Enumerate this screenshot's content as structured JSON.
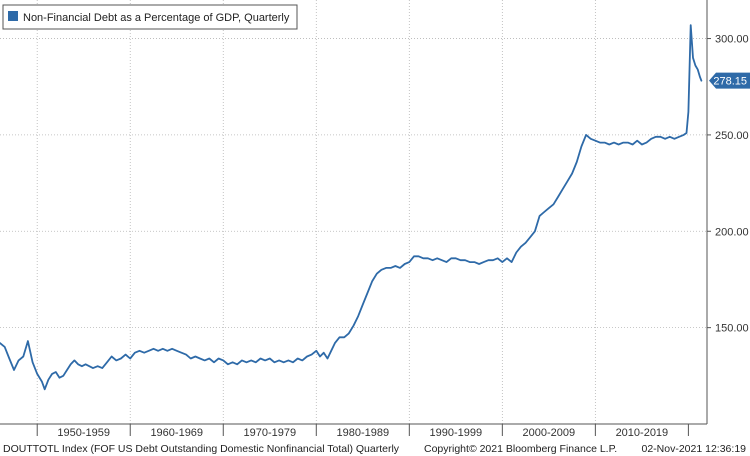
{
  "chart_data": {
    "type": "line",
    "title": "Non-Financial Debt as a Percentage of GDP, Quarterly",
    "x_range": [
      1946,
      2022
    ],
    "ylim": [
      100,
      320
    ],
    "y_ticks": [
      {
        "value": 150,
        "label": "150.00"
      },
      {
        "value": 200,
        "label": "200.00"
      },
      {
        "value": 250,
        "label": "250.00"
      },
      {
        "value": 300,
        "label": "300.00"
      }
    ],
    "x_bands": [
      {
        "label": "1950-1959",
        "start": 1950,
        "end": 1960
      },
      {
        "label": "1960-1969",
        "start": 1960,
        "end": 1970
      },
      {
        "label": "1970-1979",
        "start": 1970,
        "end": 1980
      },
      {
        "label": "1980-1989",
        "start": 1980,
        "end": 1990
      },
      {
        "label": "1990-1999",
        "start": 1990,
        "end": 2000
      },
      {
        "label": "2000-2009",
        "start": 2000,
        "end": 2010
      },
      {
        "label": "2010-2019",
        "start": 2010,
        "end": 2020
      }
    ],
    "last_value_label": "278.15",
    "grid": true,
    "legend_position": "top-left",
    "series": [
      {
        "name": "Non-Financial Debt as a Percentage of GDP, Quarterly",
        "color": "#2e6aa8",
        "points": [
          [
            1946.0,
            142
          ],
          [
            1946.5,
            140
          ],
          [
            1947.0,
            134
          ],
          [
            1947.5,
            128
          ],
          [
            1948.0,
            133
          ],
          [
            1948.5,
            135
          ],
          [
            1949.0,
            143
          ],
          [
            1949.5,
            132
          ],
          [
            1950.0,
            126
          ],
          [
            1950.5,
            122
          ],
          [
            1950.8,
            118
          ],
          [
            1951.2,
            123
          ],
          [
            1951.6,
            126
          ],
          [
            1952.0,
            127
          ],
          [
            1952.4,
            124
          ],
          [
            1952.8,
            125
          ],
          [
            1953.2,
            128
          ],
          [
            1953.6,
            131
          ],
          [
            1954.0,
            133
          ],
          [
            1954.4,
            131
          ],
          [
            1954.8,
            130
          ],
          [
            1955.2,
            131
          ],
          [
            1955.6,
            130
          ],
          [
            1956.0,
            129
          ],
          [
            1956.5,
            130
          ],
          [
            1957.0,
            129
          ],
          [
            1957.5,
            132
          ],
          [
            1958.0,
            135
          ],
          [
            1958.5,
            133
          ],
          [
            1959.0,
            134
          ],
          [
            1959.5,
            136
          ],
          [
            1960.0,
            134
          ],
          [
            1960.5,
            137
          ],
          [
            1961.0,
            138
          ],
          [
            1961.5,
            137
          ],
          [
            1962.0,
            138
          ],
          [
            1962.5,
            139
          ],
          [
            1963.0,
            138
          ],
          [
            1963.5,
            139
          ],
          [
            1964.0,
            138
          ],
          [
            1964.5,
            139
          ],
          [
            1965.0,
            138
          ],
          [
            1965.5,
            137
          ],
          [
            1966.0,
            136
          ],
          [
            1966.5,
            134
          ],
          [
            1967.0,
            135
          ],
          [
            1967.5,
            134
          ],
          [
            1968.0,
            133
          ],
          [
            1968.5,
            134
          ],
          [
            1969.0,
            132
          ],
          [
            1969.5,
            134
          ],
          [
            1970.0,
            133
          ],
          [
            1970.5,
            131
          ],
          [
            1971.0,
            132
          ],
          [
            1971.5,
            131
          ],
          [
            1972.0,
            133
          ],
          [
            1972.5,
            132
          ],
          [
            1973.0,
            133
          ],
          [
            1973.5,
            132
          ],
          [
            1974.0,
            134
          ],
          [
            1974.5,
            133
          ],
          [
            1975.0,
            134
          ],
          [
            1975.5,
            132
          ],
          [
            1976.0,
            133
          ],
          [
            1976.5,
            132
          ],
          [
            1977.0,
            133
          ],
          [
            1977.5,
            132
          ],
          [
            1978.0,
            134
          ],
          [
            1978.5,
            133
          ],
          [
            1979.0,
            135
          ],
          [
            1979.5,
            136
          ],
          [
            1980.0,
            138
          ],
          [
            1980.4,
            135
          ],
          [
            1980.8,
            137
          ],
          [
            1981.2,
            134
          ],
          [
            1981.6,
            138
          ],
          [
            1982.0,
            142
          ],
          [
            1982.5,
            145
          ],
          [
            1983.0,
            145
          ],
          [
            1983.5,
            147
          ],
          [
            1984.0,
            151
          ],
          [
            1984.5,
            156
          ],
          [
            1985.0,
            162
          ],
          [
            1985.5,
            168
          ],
          [
            1986.0,
            174
          ],
          [
            1986.5,
            178
          ],
          [
            1987.0,
            180
          ],
          [
            1987.5,
            181
          ],
          [
            1988.0,
            181
          ],
          [
            1988.5,
            182
          ],
          [
            1989.0,
            181
          ],
          [
            1989.5,
            183
          ],
          [
            1990.0,
            184
          ],
          [
            1990.5,
            187
          ],
          [
            1991.0,
            187
          ],
          [
            1991.5,
            186
          ],
          [
            1992.0,
            186
          ],
          [
            1992.5,
            185
          ],
          [
            1993.0,
            186
          ],
          [
            1993.5,
            185
          ],
          [
            1994.0,
            184
          ],
          [
            1994.5,
            186
          ],
          [
            1995.0,
            186
          ],
          [
            1995.5,
            185
          ],
          [
            1996.0,
            185
          ],
          [
            1996.5,
            184
          ],
          [
            1997.0,
            184
          ],
          [
            1997.5,
            183
          ],
          [
            1998.0,
            184
          ],
          [
            1998.5,
            185
          ],
          [
            1999.0,
            185
          ],
          [
            1999.5,
            186
          ],
          [
            2000.0,
            184
          ],
          [
            2000.5,
            186
          ],
          [
            2001.0,
            184
          ],
          [
            2001.5,
            189
          ],
          [
            2002.0,
            192
          ],
          [
            2002.5,
            194
          ],
          [
            2003.0,
            197
          ],
          [
            2003.5,
            200
          ],
          [
            2004.0,
            208
          ],
          [
            2004.5,
            210
          ],
          [
            2005.0,
            212
          ],
          [
            2005.5,
            214
          ],
          [
            2006.0,
            218
          ],
          [
            2006.5,
            222
          ],
          [
            2007.0,
            226
          ],
          [
            2007.5,
            230
          ],
          [
            2008.0,
            236
          ],
          [
            2008.5,
            244
          ],
          [
            2009.0,
            250
          ],
          [
            2009.5,
            248
          ],
          [
            2010.0,
            247
          ],
          [
            2010.5,
            246
          ],
          [
            2011.0,
            246
          ],
          [
            2011.5,
            245
          ],
          [
            2012.0,
            246
          ],
          [
            2012.5,
            245
          ],
          [
            2013.0,
            246
          ],
          [
            2013.5,
            246
          ],
          [
            2014.0,
            245
          ],
          [
            2014.5,
            247
          ],
          [
            2015.0,
            245
          ],
          [
            2015.5,
            246
          ],
          [
            2016.0,
            248
          ],
          [
            2016.5,
            249
          ],
          [
            2017.0,
            249
          ],
          [
            2017.5,
            248
          ],
          [
            2018.0,
            249
          ],
          [
            2018.5,
            248
          ],
          [
            2019.0,
            249
          ],
          [
            2019.5,
            250
          ],
          [
            2019.8,
            251
          ],
          [
            2020.0,
            262
          ],
          [
            2020.25,
            307
          ],
          [
            2020.5,
            290
          ],
          [
            2020.75,
            286
          ],
          [
            2021.0,
            284
          ],
          [
            2021.25,
            280
          ],
          [
            2021.4,
            278.15
          ]
        ]
      }
    ]
  },
  "footer": {
    "left": "DOUTTOTL Index (FOF US Debt Outstanding Domestic Nonfinancial Total)  Quarterly",
    "copyright": "Copyright© 2021 Bloomberg Finance L.P.",
    "timestamp": "02-Nov-2021 12:36:19"
  }
}
